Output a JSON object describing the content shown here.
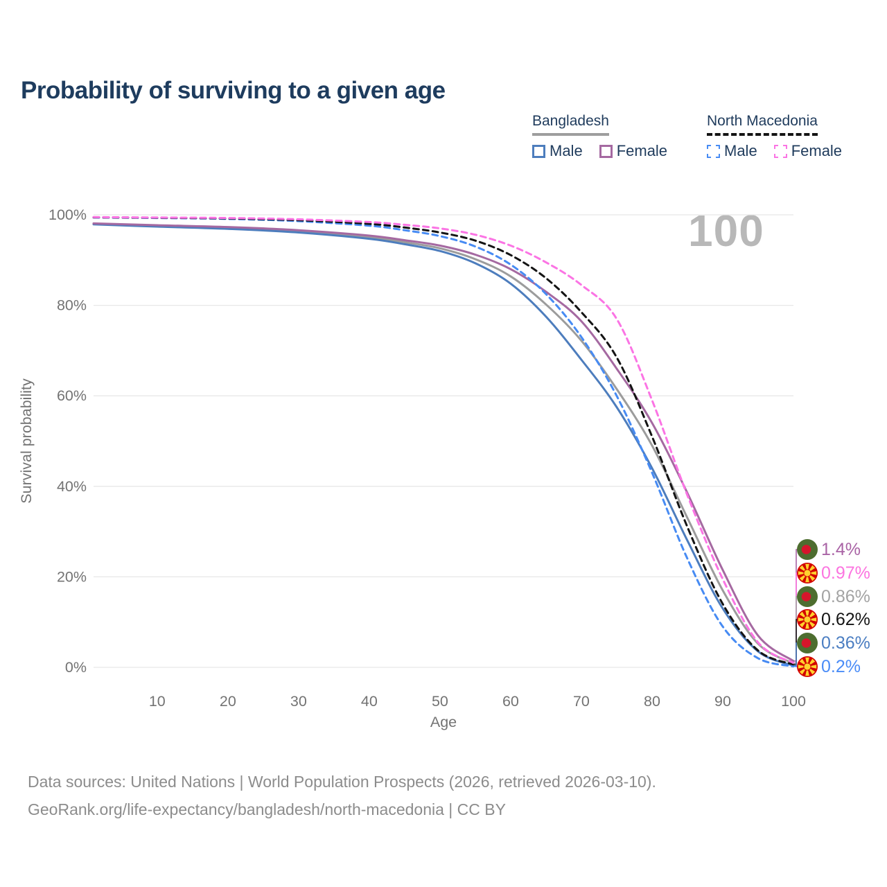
{
  "title": "Probability of surviving to a given age",
  "watermark": "100",
  "legend": {
    "groups": [
      {
        "country": "Bangladesh",
        "line_style": "solid",
        "underline_color": "#9e9e9e",
        "items": [
          {
            "label": "Male",
            "color": "#4d7dbd"
          },
          {
            "label": "Female",
            "color": "#a569a1"
          }
        ]
      },
      {
        "country": "North Macedonia",
        "line_style": "dashed",
        "underline_color": "#141414",
        "items": [
          {
            "label": "Male",
            "color": "#478bf3"
          },
          {
            "label": "Female",
            "color": "#fb74e4"
          }
        ]
      }
    ]
  },
  "chart_data": {
    "type": "line",
    "title": "Probability of surviving to a given age",
    "xlabel": "Age",
    "ylabel": "Survival probability",
    "xlim": [
      1,
      100
    ],
    "ylim": [
      0,
      100
    ],
    "grid": "horizontal",
    "gridline_color": "#e7e7e7",
    "x_ticks": [
      {
        "value": 10,
        "label": "10"
      },
      {
        "value": 20,
        "label": "20"
      },
      {
        "value": 30,
        "label": "30"
      },
      {
        "value": 40,
        "label": "40"
      },
      {
        "value": 50,
        "label": "50"
      },
      {
        "value": 60,
        "label": "60"
      },
      {
        "value": 70,
        "label": "70"
      },
      {
        "value": 80,
        "label": "80"
      },
      {
        "value": 90,
        "label": "90"
      },
      {
        "value": 100,
        "label": "100"
      }
    ],
    "y_ticks": [
      {
        "value": 0,
        "label": "0%"
      },
      {
        "value": 20,
        "label": "20%"
      },
      {
        "value": 40,
        "label": "40%"
      },
      {
        "value": 60,
        "label": "60%"
      },
      {
        "value": 80,
        "label": "80%"
      },
      {
        "value": 100,
        "label": "100%"
      }
    ],
    "x": [
      1,
      10,
      20,
      30,
      40,
      45,
      50,
      55,
      60,
      65,
      70,
      75,
      80,
      85,
      90,
      95,
      100
    ],
    "series": [
      {
        "name": "Bangladesh",
        "country": "Bangladesh",
        "sex": "Both",
        "color": "#9c9c9c",
        "dashed": false,
        "end_label": "0.86%",
        "values": [
          98.0,
          97.55,
          97.1,
          96.35,
          95.05,
          93.95,
          92.6,
          90.2,
          86.4,
          80.2,
          72.2,
          61.5,
          49.0,
          33.0,
          17.0,
          5.2,
          0.86
        ]
      },
      {
        "name": "Bangladesh Male",
        "country": "Bangladesh",
        "sex": "Male",
        "color": "#4d7dbd",
        "dashed": false,
        "end_label": "0.36%",
        "values": [
          97.9,
          97.4,
          96.9,
          96.1,
          94.7,
          93.5,
          92.0,
          89.3,
          84.8,
          77.5,
          68.0,
          57.5,
          44.0,
          28.0,
          13.0,
          3.5,
          0.36
        ]
      },
      {
        "name": "Bangladesh Female",
        "country": "Bangladesh",
        "sex": "Female",
        "color": "#a569a1",
        "dashed": false,
        "end_label": "1.4%",
        "values": [
          98.1,
          97.7,
          97.3,
          96.6,
          95.4,
          94.4,
          93.2,
          91.2,
          88.0,
          83.0,
          76.5,
          66.0,
          54.0,
          38.5,
          21.5,
          7.0,
          1.4
        ]
      },
      {
        "name": "North Macedonia Male",
        "country": "North Macedonia",
        "sex": "Male",
        "color": "#478bf3",
        "dashed": true,
        "end_label": "0.2%",
        "values": [
          99.4,
          99.3,
          99.1,
          98.6,
          97.6,
          96.6,
          95.3,
          93.0,
          89.0,
          82.5,
          73.0,
          60.0,
          43.0,
          24.0,
          9.0,
          2.0,
          0.2
        ]
      },
      {
        "name": "North Macedonia",
        "country": "North Macedonia",
        "sex": "Both",
        "color": "#141414",
        "dashed": true,
        "end_label": "0.62%",
        "values": [
          99.45,
          99.35,
          99.2,
          98.8,
          98.0,
          97.2,
          96.1,
          94.3,
          91.1,
          86.0,
          78.5,
          68.5,
          51.0,
          31.0,
          14.0,
          3.7,
          0.62
        ]
      },
      {
        "name": "North Macedonia Female",
        "country": "North Macedonia",
        "sex": "Female",
        "color": "#fb74e4",
        "dashed": true,
        "end_label": "0.97%",
        "values": [
          99.5,
          99.4,
          99.3,
          99.0,
          98.4,
          97.8,
          97.0,
          95.6,
          93.2,
          89.5,
          84.5,
          77.0,
          59.0,
          38.0,
          19.5,
          5.5,
          0.97
        ]
      }
    ]
  },
  "end_labels": [
    {
      "label": "1.4%",
      "flag": "bangladesh",
      "color": "#a963a5",
      "value_pct": 1.4
    },
    {
      "label": "0.97%",
      "flag": "north-macedonia",
      "color": "#fc74e0",
      "value_pct": 0.97
    },
    {
      "label": "0.86%",
      "flag": "bangladesh",
      "color": "#a3a3a3",
      "value_pct": 0.86
    },
    {
      "label": "0.62%",
      "flag": "north-macedonia",
      "color": "#141414",
      "value_pct": 0.62
    },
    {
      "label": "0.36%",
      "flag": "bangladesh",
      "color": "#4b7ec2",
      "value_pct": 0.36
    },
    {
      "label": "0.2%",
      "flag": "north-macedonia",
      "color": "#4a8cf7",
      "value_pct": 0.2
    }
  ],
  "footer": {
    "line1": "Data sources: United Nations | World Population Prospects (2026, retrieved 2026-03-10).",
    "line2": "GeoRank.org/life-expectancy/bangladesh/north-macedonia | CC BY"
  }
}
